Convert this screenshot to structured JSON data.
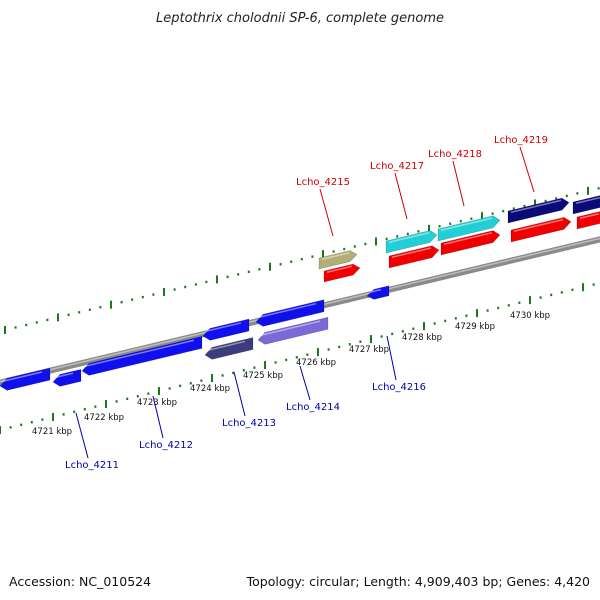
{
  "title": "Leptothrix cholodnii SP-6, complete genome",
  "footer": {
    "accession": "Accession: NC_010524",
    "summary": "Topology: circular; Length: 4,909,403 bp; Genes: 4,420"
  },
  "colors": {
    "forward_label": "#cc0000",
    "reverse_label": "#0000aa",
    "backbone": "#8a8a8a",
    "tick": "#1a7a1a",
    "blue": "#1010ee",
    "navy": "#0a0a78",
    "slate": "#3c3c7c",
    "lavender": "#7a6ad8",
    "cyan": "#22cfd6",
    "red": "#f00000",
    "khaki": "#b3ad78"
  },
  "kbp_ticks": [
    "4721 kbp",
    "4722 kbp",
    "4723 kbp",
    "4724 kbp",
    "4725 kbp",
    "4726 kbp",
    "4727 kbp",
    "4728 kbp",
    "4729 kbp",
    "4730 kbp"
  ],
  "gene_labels": [
    "Lcho_4215",
    "Lcho_4217",
    "Lcho_4218",
    "Lcho_4219",
    "Lcho_4211",
    "Lcho_4212",
    "Lcho_4213",
    "Lcho_4214",
    "Lcho_4216"
  ],
  "genes": [
    {
      "name": "",
      "strand": "reverse",
      "color": "blue"
    },
    {
      "name": "",
      "strand": "reverse",
      "color": "blue"
    },
    {
      "name": "",
      "strand": "reverse",
      "color": "blue"
    },
    {
      "name": "",
      "strand": "reverse",
      "color": "blue"
    },
    {
      "name": "",
      "strand": "reverse",
      "color": "blue"
    },
    {
      "name": "",
      "strand": "reverse",
      "color": "blue"
    },
    {
      "name": "",
      "strand": "forward",
      "color": "red"
    },
    {
      "name": "",
      "strand": "forward",
      "color": "red"
    },
    {
      "name": "",
      "strand": "forward",
      "color": "red"
    },
    {
      "name": "",
      "strand": "forward",
      "color": "red"
    },
    {
      "name": "",
      "strand": "forward",
      "color": "red"
    },
    {
      "name": "Lcho_4213",
      "strand": "reverse",
      "color": "slate"
    },
    {
      "name": "Lcho_4214",
      "strand": "reverse",
      "color": "lavender"
    },
    {
      "name": "Lcho_4215",
      "strand": "forward",
      "color": "khaki"
    },
    {
      "name": "Lcho_4217",
      "strand": "forward",
      "color": "cyan"
    },
    {
      "name": "Lcho_4218",
      "strand": "forward",
      "color": "cyan"
    },
    {
      "name": "Lcho_4219",
      "strand": "forward",
      "color": "navy"
    },
    {
      "name": "",
      "strand": "forward",
      "color": "navy"
    }
  ]
}
